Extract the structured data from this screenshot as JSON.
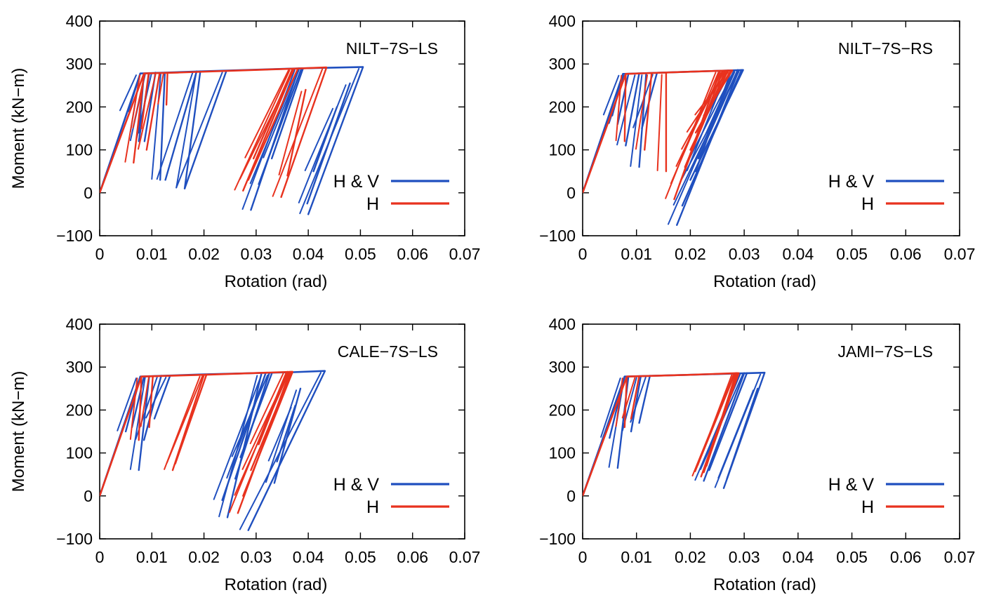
{
  "figure": {
    "description_free": true
  },
  "chart_data": [
    {
      "type": "line",
      "title": "NILT−7S−LS",
      "xlabel": "Rotation (rad)",
      "ylabel": "Moment (kN−m)",
      "xlim": [
        0,
        0.07
      ],
      "ylim": [
        -100,
        400
      ],
      "xticks": [
        "0",
        "0.01",
        "0.02",
        "0.03",
        "0.04",
        "0.05",
        "0.06",
        "0.07"
      ],
      "yticks": [
        "400",
        "300",
        "200",
        "100",
        "0",
        "−100"
      ],
      "legend": [
        "H & V",
        "H"
      ],
      "legend_position": "bottom-right",
      "series": [
        {
          "name": "H & V",
          "color": "#1f4fbf",
          "backbone": [
            [
              0,
              0
            ],
            [
              0.0078,
              278
            ],
            [
              0.02,
              283
            ],
            [
              0.039,
              290
            ],
            [
              0.0505,
              293
            ]
          ],
          "cycles": [
            [
              0.0078,
              278,
              0.0055,
              190
            ],
            [
              0.0085,
              278,
              0.0075,
              140
            ],
            [
              0.0095,
              279,
              0.0075,
              120
            ],
            [
              0.0107,
              280,
              0.0086,
              120
            ],
            [
              0.0125,
              280,
              0.0116,
              30
            ],
            [
              0.0186,
              283,
              0.0126,
              30
            ],
            [
              0.0193,
              283,
              0.0163,
              10
            ],
            [
              0.0243,
              284,
              0.0163,
              10
            ],
            [
              0.0382,
              290,
              0.029,
              -40
            ],
            [
              0.0387,
              290,
              0.0305,
              20
            ],
            [
              0.039,
              290,
              0.033,
              80
            ],
            [
              0.0505,
              293,
              0.04,
              -50
            ],
            [
              0.048,
              255,
              0.0398,
              -25
            ],
            [
              0.0455,
              200,
              0.041,
              50
            ]
          ]
        },
        {
          "name": "H",
          "color": "#e8321e",
          "backbone": [
            [
              0,
              0
            ],
            [
              0.0085,
              278
            ],
            [
              0.015,
              280
            ],
            [
              0.037,
              289
            ],
            [
              0.0435,
              292
            ]
          ],
          "cycles": [
            [
              0.0085,
              278,
              0.0065,
              70
            ],
            [
              0.0094,
              279,
              0.008,
              150
            ],
            [
              0.0115,
              279,
              0.009,
              100
            ],
            [
              0.013,
              280,
              0.0128,
              205
            ],
            [
              0.0372,
              289,
              0.0275,
              5
            ],
            [
              0.038,
              289,
              0.0285,
              30
            ],
            [
              0.037,
              289,
              0.0295,
              80
            ],
            [
              0.0435,
              292,
              0.0348,
              -10
            ],
            [
              0.0395,
              240,
              0.036,
              40
            ]
          ]
        }
      ]
    },
    {
      "type": "line",
      "title": "NILT−7S−RS",
      "xlabel": "Rotation (rad)",
      "ylabel": "",
      "xlim": [
        0,
        0.07
      ],
      "ylim": [
        -100,
        400
      ],
      "xticks": [
        "0",
        "0.01",
        "0.02",
        "0.03",
        "0.04",
        "0.05",
        "0.06",
        "0.07"
      ],
      "yticks": [
        "400",
        "300",
        "200",
        "100",
        "0",
        "−100"
      ],
      "legend": [
        "H & V",
        "H"
      ],
      "legend_position": "bottom-right",
      "series": [
        {
          "name": "H & V",
          "color": "#1f4fbf",
          "backbone": [
            [
              0,
              0
            ],
            [
              0.0075,
              277
            ],
            [
              0.02,
              282
            ],
            [
              0.0298,
              286
            ]
          ],
          "cycles": [
            [
              0.0075,
              277,
              0.0055,
              180
            ],
            [
              0.0085,
              277,
              0.0065,
              160
            ],
            [
              0.0105,
              278,
              0.008,
              110
            ],
            [
              0.0118,
              278,
              0.0105,
              60
            ],
            [
              0.0138,
              279,
              0.011,
              150
            ],
            [
              0.029,
              285,
              0.0175,
              -75
            ],
            [
              0.0295,
              286,
              0.0185,
              -30
            ],
            [
              0.0298,
              286,
              0.02,
              30
            ],
            [
              0.0288,
              286,
              0.0215,
              80
            ],
            [
              0.0282,
              285,
              0.023,
              140
            ],
            [
              0.0276,
              285,
              0.021,
              50
            ]
          ]
        },
        {
          "name": "H",
          "color": "#e8321e",
          "backbone": [
            [
              0,
              0
            ],
            [
              0.008,
              277
            ],
            [
              0.02,
              282
            ],
            [
              0.0278,
              285
            ]
          ],
          "cycles": [
            [
              0.008,
              277,
              0.0078,
              120
            ],
            [
              0.0128,
              278,
              0.0115,
              100
            ],
            [
              0.0155,
              279,
              0.0155,
              50
            ],
            [
              0.0255,
              284,
              0.017,
              -15
            ],
            [
              0.026,
              284,
              0.018,
              20
            ],
            [
              0.0265,
              284,
              0.019,
              60
            ],
            [
              0.027,
              285,
              0.02,
              100
            ],
            [
              0.0275,
              285,
              0.021,
              140
            ],
            [
              0.0278,
              285,
              0.0225,
              180
            ]
          ]
        }
      ]
    },
    {
      "type": "line",
      "title": "CALE−7S−LS",
      "xlabel": "Rotation (rad)",
      "ylabel": "Moment (kN−m)",
      "xlim": [
        0,
        0.07
      ],
      "ylim": [
        -100,
        400
      ],
      "xticks": [
        "0",
        "0.01",
        "0.02",
        "0.03",
        "0.04",
        "0.05",
        "0.06",
        "0.07"
      ],
      "yticks": [
        "400",
        "300",
        "200",
        "100",
        "0",
        "−100"
      ],
      "legend": [
        "H & V",
        "H"
      ],
      "legend_position": "bottom-right",
      "series": [
        {
          "name": "H & V",
          "color": "#1f4fbf",
          "backbone": [
            [
              0,
              0
            ],
            [
              0.0078,
              278
            ],
            [
              0.02,
              283
            ],
            [
              0.037,
              288
            ],
            [
              0.0432,
              291
            ]
          ],
          "cycles": [
            [
              0.0078,
              278,
              0.005,
              150
            ],
            [
              0.0085,
              278,
              0.0062,
              160
            ],
            [
              0.0095,
              279,
              0.0075,
              60
            ],
            [
              0.0118,
              280,
              0.0085,
              130
            ],
            [
              0.0135,
              280,
              0.0105,
              180
            ],
            [
              0.031,
              284,
              0.0245,
              -50
            ],
            [
              0.0318,
              285,
              0.0235,
              -10
            ],
            [
              0.0325,
              285,
              0.026,
              40
            ],
            [
              0.033,
              285,
              0.027,
              90
            ],
            [
              0.0432,
              291,
              0.0285,
              -80
            ],
            [
              0.0385,
              250,
              0.0335,
              30
            ],
            [
              0.0375,
              210,
              0.034,
              80
            ]
          ]
        },
        {
          "name": "H",
          "color": "#e8321e",
          "backbone": [
            [
              0,
              0
            ],
            [
              0.008,
              278
            ],
            [
              0.02,
              282
            ],
            [
              0.037,
              289
            ]
          ],
          "cycles": [
            [
              0.008,
              278,
              0.0075,
              130
            ],
            [
              0.0102,
              279,
              0.0095,
              160
            ],
            [
              0.02,
              282,
              0.014,
              60
            ],
            [
              0.0205,
              283,
              0.0145,
              75
            ],
            [
              0.0365,
              289,
              0.0265,
              -40
            ],
            [
              0.037,
              289,
              0.0275,
              0
            ],
            [
              0.0368,
              289,
              0.029,
              60
            ],
            [
              0.036,
              289,
              0.0305,
              120
            ]
          ]
        }
      ]
    },
    {
      "type": "line",
      "title": "JAMI−7S−LS",
      "xlabel": "Rotation (rad)",
      "ylabel": "",
      "xlim": [
        0,
        0.07
      ],
      "ylim": [
        -100,
        400
      ],
      "xticks": [
        "0",
        "0.01",
        "0.02",
        "0.03",
        "0.04",
        "0.05",
        "0.06",
        "0.07"
      ],
      "yticks": [
        "400",
        "300",
        "200",
        "100",
        "0",
        "−100"
      ],
      "legend": [
        "H & V",
        "H"
      ],
      "legend_position": "bottom-right",
      "series": [
        {
          "name": "H & V",
          "color": "#1f4fbf",
          "backbone": [
            [
              0,
              0
            ],
            [
              0.0078,
              278
            ],
            [
              0.02,
              282
            ],
            [
              0.0338,
              287
            ]
          ],
          "cycles": [
            [
              0.0078,
              278,
              0.005,
              135
            ],
            [
              0.0085,
              278,
              0.0065,
              65
            ],
            [
              0.0108,
              279,
              0.009,
              150
            ],
            [
              0.0125,
              280,
              0.0105,
              170
            ],
            [
              0.03,
              286,
              0.0225,
              35
            ],
            [
              0.0305,
              286,
              0.0235,
              60
            ],
            [
              0.0338,
              287,
              0.0262,
              18
            ],
            [
              0.0325,
              250,
              0.0268,
              40
            ]
          ]
        },
        {
          "name": "H",
          "color": "#e8321e",
          "backbone": [
            [
              0,
              0
            ],
            [
              0.0082,
              278
            ],
            [
              0.02,
              282
            ],
            [
              0.0288,
              286
            ]
          ],
          "cycles": [
            [
              0.0082,
              278,
              0.0078,
              160
            ],
            [
              0.0105,
              279,
              0.009,
              180
            ],
            [
              0.0288,
              286,
              0.022,
              45
            ],
            [
              0.029,
              286,
              0.0225,
              55
            ],
            [
              0.0285,
              286,
              0.023,
              70
            ]
          ]
        }
      ]
    }
  ]
}
